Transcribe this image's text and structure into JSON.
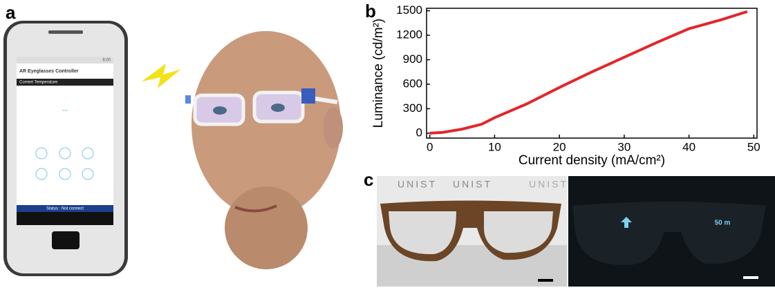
{
  "panel_labels": [
    "a",
    "b",
    "c"
  ],
  "phone": {
    "status_time": "6:00",
    "app_title": "AR Eyeglasses Controller",
    "section": "Current Temperature",
    "temperature": "--",
    "status": "Status : Not connect"
  },
  "photos": {
    "brand": "UNIST",
    "distance": "50 m"
  },
  "chart_data": {
    "type": "line",
    "x_label": "Current density (mA/cm²)",
    "y_label": "Luminance (cd/m²)",
    "x": [
      0,
      2,
      5,
      8,
      10,
      15,
      20,
      25,
      30,
      35,
      40,
      45,
      49
    ],
    "series": [
      {
        "color": "#e3262b",
        "values": [
          0,
          10,
          50,
          110,
          190,
          360,
          560,
          750,
          930,
          1110,
          1280,
          1390,
          1490
        ]
      }
    ],
    "xlim": [
      -0.5,
      50.5
    ],
    "ylim": [
      -60,
      1530
    ],
    "xticks": [
      0,
      10,
      20,
      30,
      40,
      50
    ],
    "yticks": [
      0,
      300,
      600,
      900,
      1200,
      1500
    ]
  }
}
